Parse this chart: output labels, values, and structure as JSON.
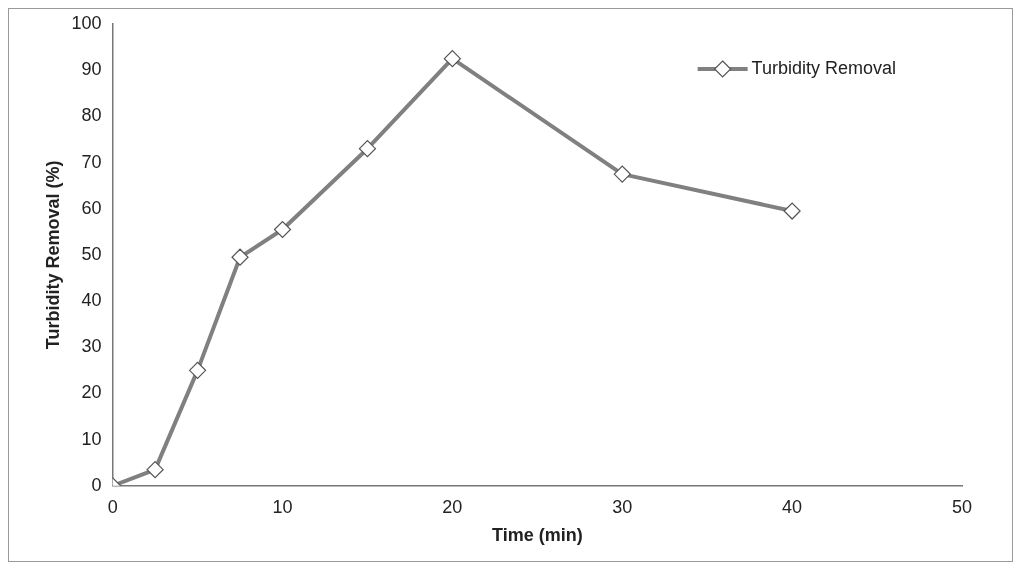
{
  "chart_data": {
    "type": "line",
    "xlabel": "Time (min)",
    "ylabel": "Turbidity Removal (%)",
    "x": [
      0,
      2.5,
      5,
      7.5,
      10,
      15,
      20,
      30,
      40
    ],
    "series": [
      {
        "name": "Turbidity Removal",
        "color": "#808080",
        "values": [
          0,
          3.5,
          25,
          49.5,
          55.5,
          73,
          92.5,
          67.5,
          59.5
        ]
      }
    ],
    "xlim": [
      0,
      50
    ],
    "xticks": [
      0,
      10,
      20,
      30,
      40,
      50
    ],
    "ylim": [
      0,
      100
    ],
    "yticks": [
      0,
      10,
      20,
      30,
      40,
      50,
      60,
      70,
      80,
      90,
      100
    ],
    "grid": false,
    "legend": "top right",
    "marker": "diamond",
    "line_style": "solid"
  }
}
